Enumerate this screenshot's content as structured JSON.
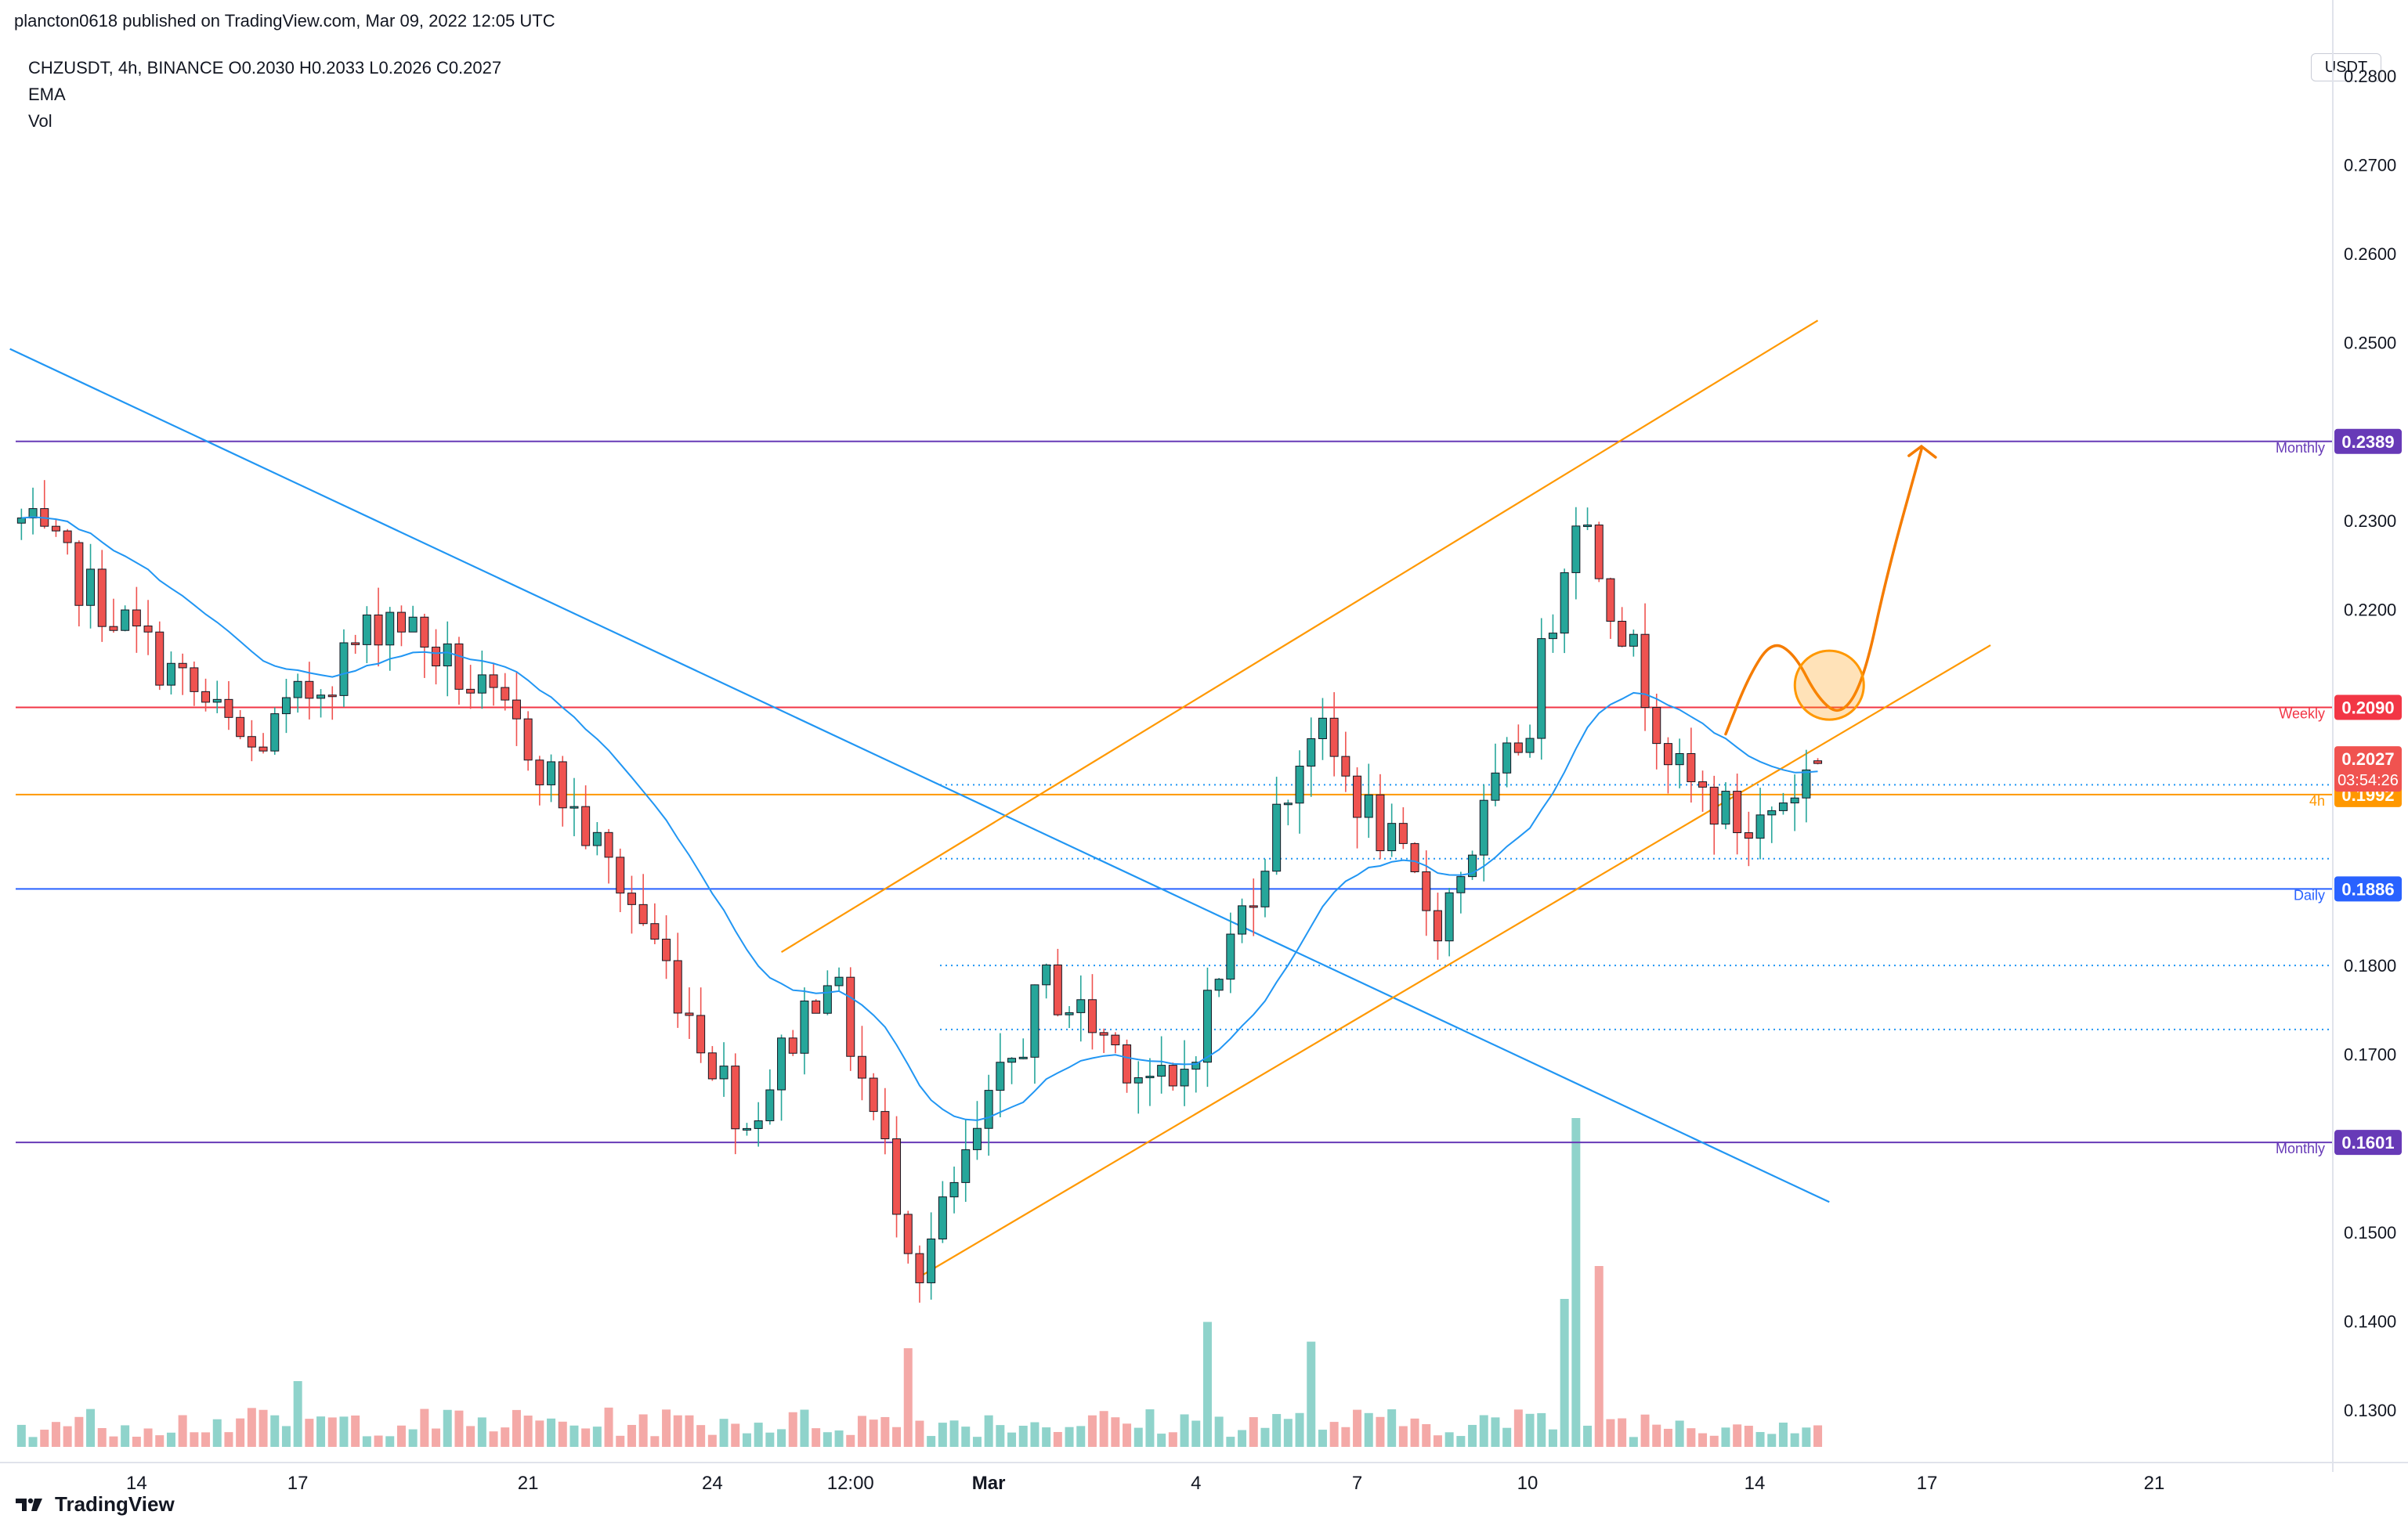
{
  "header": {
    "published_line": "plancton0618 published on TradingView.com, Mar 09, 2022 12:05 UTC"
  },
  "legend": {
    "symbol_line": "CHZUSDT, 4h, BINANCE  O0.2030  H0.2033  L0.2026  C0.2027",
    "ema_label": "EMA",
    "vol_label": "Vol"
  },
  "footer": {
    "brand": "TradingView"
  },
  "colors": {
    "up": "#26a69a",
    "down": "#ef5350",
    "up_vol": "#8fd3cb",
    "down_vol": "#f4a9a7",
    "trendline_blue": "#2196f3",
    "channel_orange": "#ff9800",
    "monthly": "#673ab7",
    "weekly": "#f23645",
    "four_h": "#ff9800",
    "daily": "#2962ff",
    "projection": "#f57c00"
  },
  "chart_data": {
    "type": "candlestick",
    "symbol": "CHZUSDT",
    "interval": "4h",
    "exchange": "BINANCE",
    "currency": "USDT",
    "ohlc_last": {
      "open": 0.203,
      "high": 0.2033,
      "low": 0.2026,
      "close": 0.2027
    },
    "ylim": [
      0.125,
      0.285
    ],
    "y_ticks": [
      "0.2800",
      "0.2700",
      "0.2600",
      "0.2500",
      "0.2300",
      "0.2200",
      "0.1800",
      "0.1700",
      "0.1500",
      "0.1400",
      "0.1300"
    ],
    "x_ticks": [
      "14",
      "17",
      "21",
      "24",
      "12:00",
      "Mar",
      "4",
      "7",
      "10",
      "14",
      "17",
      "21"
    ],
    "anchors": [
      {
        "bar": -1,
        "price": 0.231
      },
      {
        "bar": 20,
        "price": 0.204
      },
      {
        "bar": 32,
        "price": 0.22
      },
      {
        "bar": 44,
        "price": 0.205
      },
      {
        "bar": 54,
        "price": 0.185
      },
      {
        "bar": 63,
        "price": 0.162
      },
      {
        "bar": 70,
        "price": 0.18
      },
      {
        "bar": 78,
        "price": 0.146
      },
      {
        "bar": 89,
        "price": 0.178
      },
      {
        "bar": 100,
        "price": 0.165
      },
      {
        "bar": 112,
        "price": 0.207
      },
      {
        "bar": 123,
        "price": 0.185
      },
      {
        "bar": 131,
        "price": 0.208
      },
      {
        "bar": 135,
        "price": 0.232
      },
      {
        "bar": 144,
        "price": 0.201
      },
      {
        "bar": 150,
        "price": 0.195
      },
      {
        "bar": 156,
        "price": 0.2027
      }
    ],
    "volume_spikes": [
      {
        "bar": 135,
        "rel": 1.0
      },
      {
        "bar": 134,
        "rel": 0.45
      },
      {
        "bar": 137,
        "rel": 0.55
      },
      {
        "bar": 103,
        "rel": 0.38
      },
      {
        "bar": 112,
        "rel": 0.32
      },
      {
        "bar": 24,
        "rel": 0.2
      },
      {
        "bar": 77,
        "rel": 0.3
      }
    ],
    "levels": [
      {
        "price": 0.2389,
        "label": "Monthly",
        "tag": "0.2389",
        "color": "#673ab7"
      },
      {
        "price": 0.209,
        "label": "Weekly",
        "tag": "0.2090",
        "color": "#f23645"
      },
      {
        "price": 0.1992,
        "label": "4h",
        "tag": "0.1992",
        "color": "#ff9800"
      },
      {
        "price": 0.1886,
        "label": "Daily",
        "tag": "0.1886",
        "color": "#2962ff"
      },
      {
        "price": 0.1601,
        "label": "Monthly",
        "tag": "0.1601",
        "color": "#673ab7"
      }
    ],
    "last_price_tag": {
      "price": "0.2027",
      "countdown": "03:54:26"
    },
    "dotted_levels": [
      0.2003,
      0.192,
      0.18,
      0.1728
    ],
    "trendlines": [
      {
        "name": "descending",
        "from": {
          "bar": -1,
          "price": 0.2493
        },
        "to": {
          "bar": 157,
          "price": 0.1534
        }
      },
      {
        "name": "channel-lower",
        "from": {
          "bar": 78,
          "price": 0.145
        },
        "to": {
          "bar": 171,
          "price": 0.216
        }
      },
      {
        "name": "channel-upper",
        "from": {
          "bar": 66,
          "price": 0.1815
        },
        "to": {
          "bar": 156,
          "price": 0.2525
        }
      }
    ],
    "projection": [
      {
        "bar": 148,
        "price": 0.206
      },
      {
        "bar": 150,
        "price": 0.2125
      },
      {
        "bar": 152,
        "price": 0.2165
      },
      {
        "bar": 154,
        "price": 0.215
      },
      {
        "bar": 156,
        "price": 0.21
      },
      {
        "bar": 158,
        "price": 0.208
      },
      {
        "bar": 160,
        "price": 0.212
      },
      {
        "bar": 162,
        "price": 0.224
      },
      {
        "bar": 165,
        "price": 0.238
      }
    ],
    "highlight_circle": {
      "bar": 157,
      "price": 0.2115
    }
  }
}
